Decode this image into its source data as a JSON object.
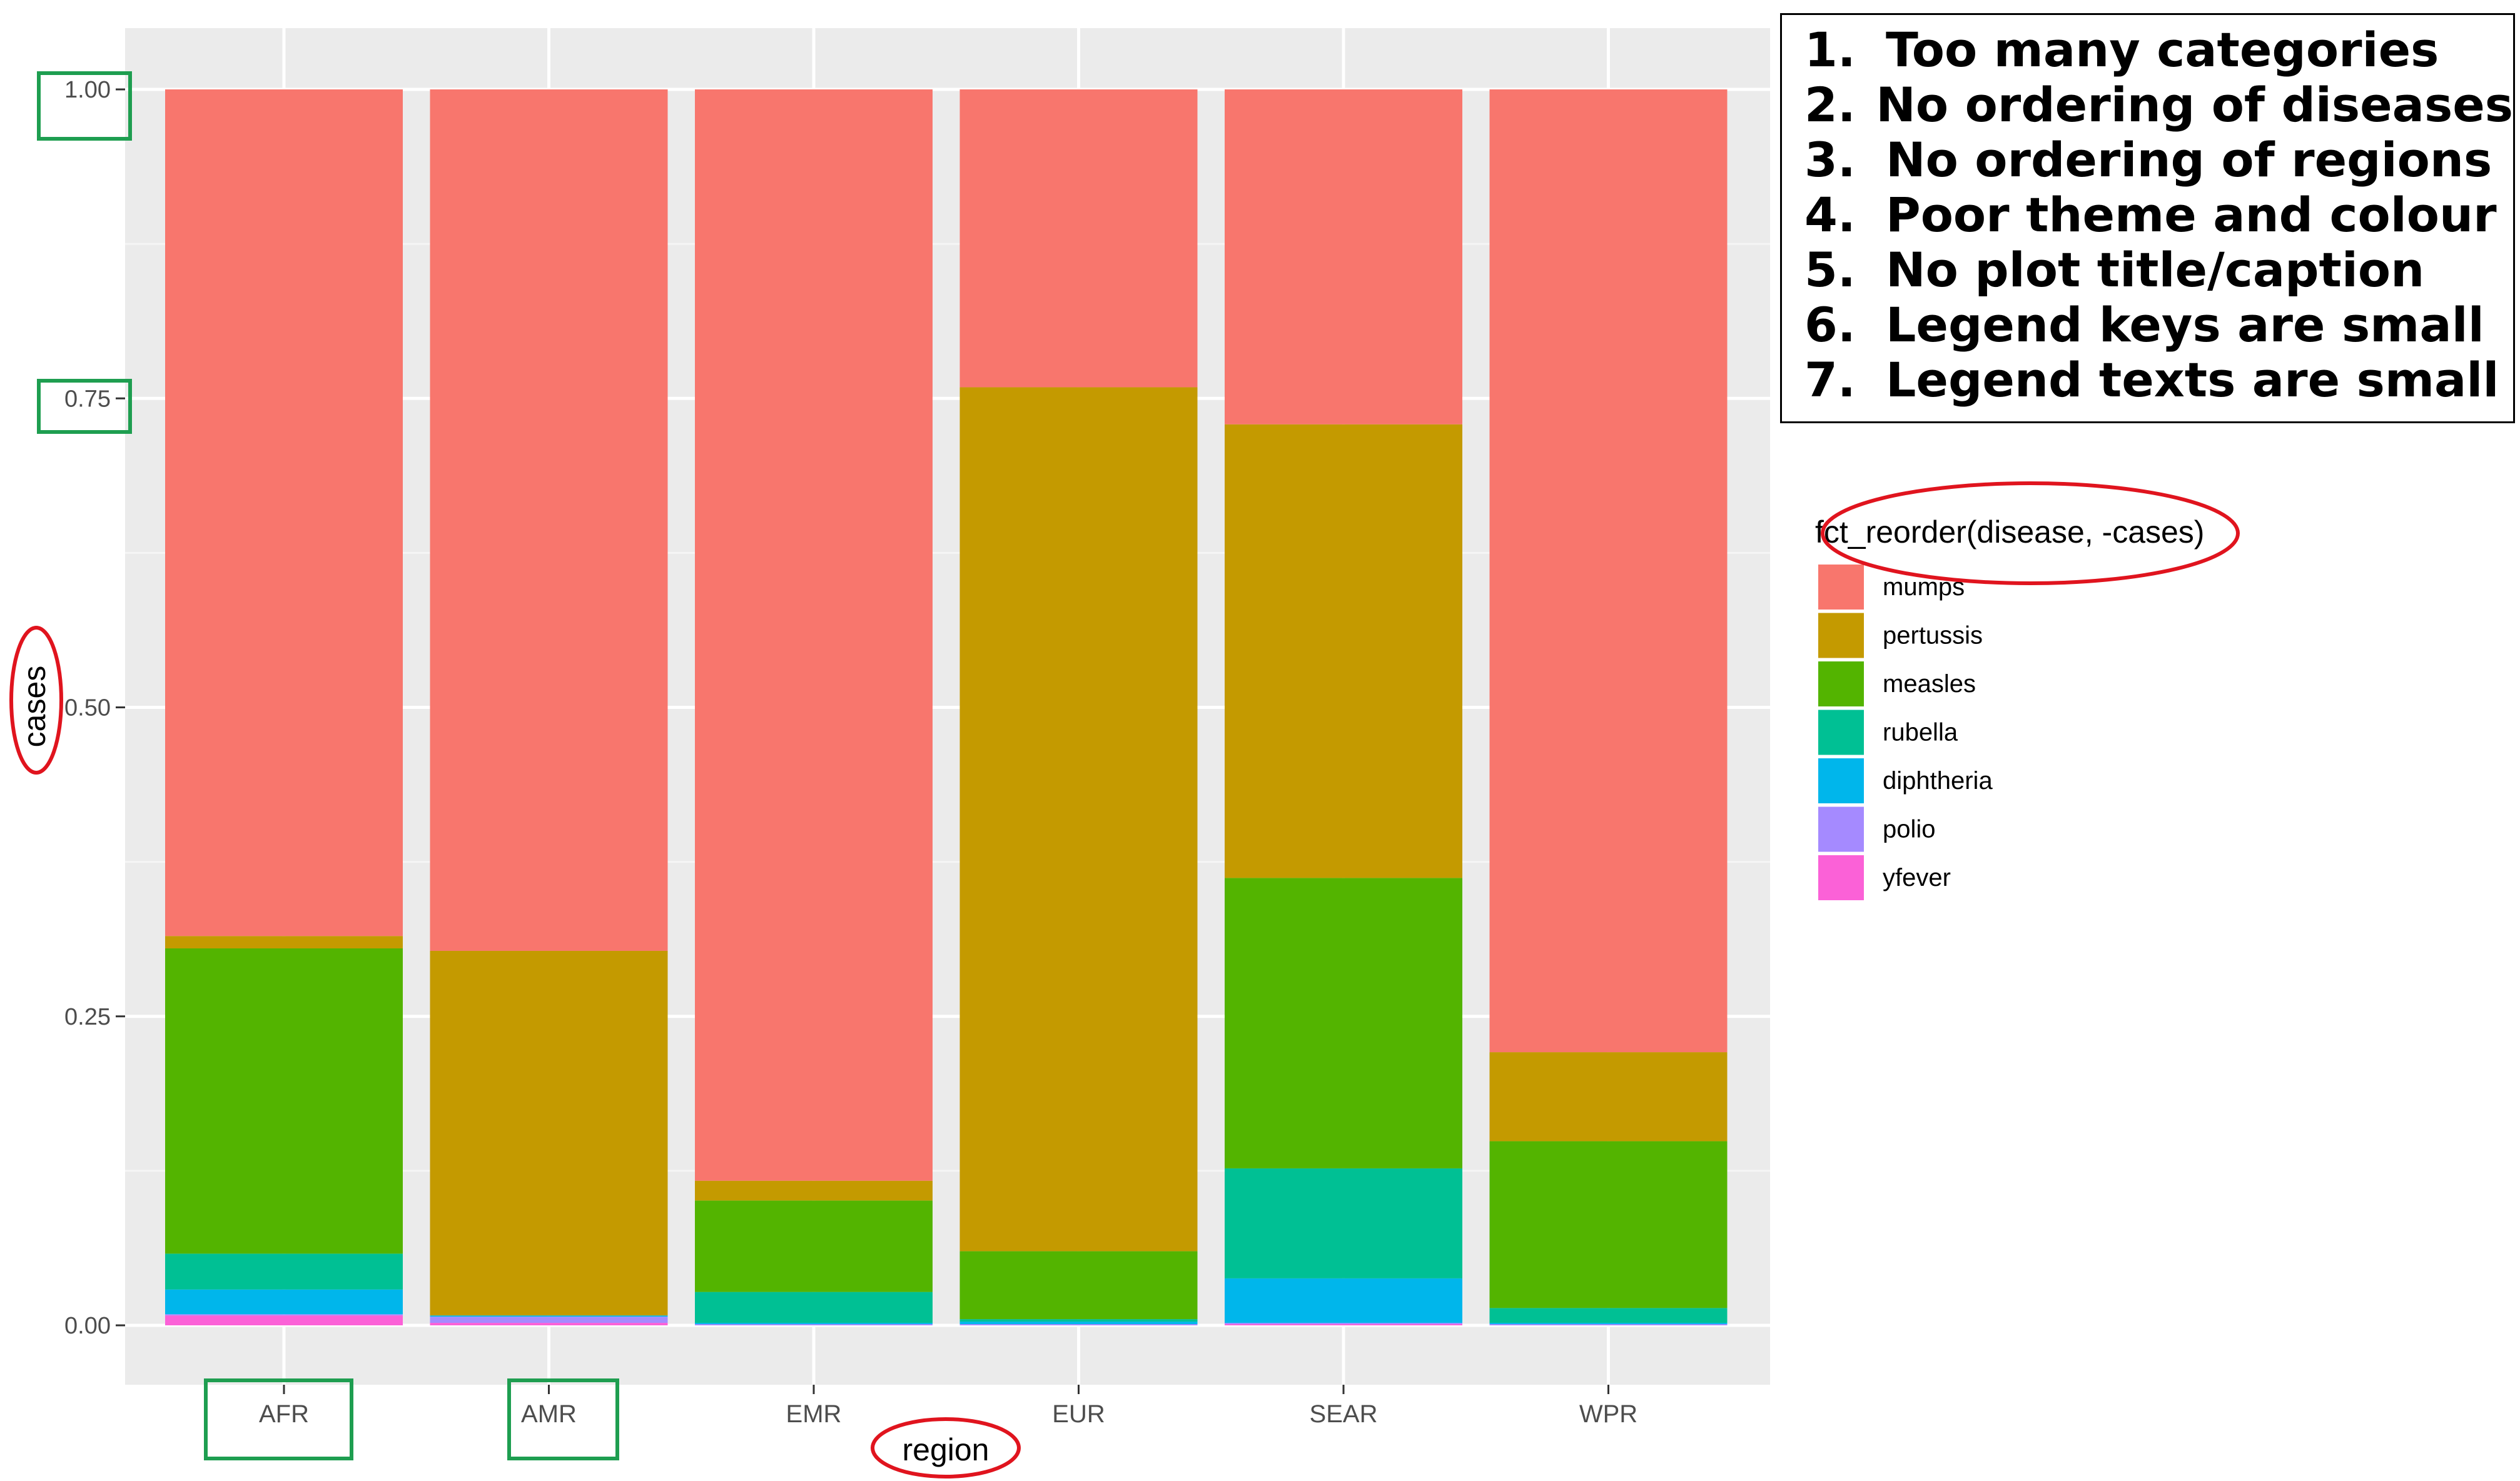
{
  "chart_data": {
    "type": "bar",
    "stacked": true,
    "position": "fill",
    "xlabel": "region",
    "ylabel": "cases",
    "ylim": [
      0,
      1
    ],
    "yticks": [
      "0.00",
      "0.25",
      "0.50",
      "0.75",
      "1.00"
    ],
    "categories": [
      "AFR",
      "AMR",
      "EMR",
      "EUR",
      "SEAR",
      "WPR"
    ],
    "legend_title": "fct_reorder(disease, -cases)",
    "legend_position": "right",
    "grid": true,
    "background": "#EBEBEB",
    "series": [
      {
        "name": "mumps",
        "color": "#F8766D",
        "values": [
          0.685,
          0.697,
          0.883,
          0.241,
          0.271,
          0.779
        ]
      },
      {
        "name": "pertussis",
        "color": "#C49A00",
        "values": [
          0.01,
          0.295,
          0.016,
          0.699,
          0.367,
          0.072
        ]
      },
      {
        "name": "measles",
        "color": "#53B400",
        "values": [
          0.247,
          0.0,
          0.074,
          0.055,
          0.235,
          0.135
        ]
      },
      {
        "name": "rubella",
        "color": "#00C094",
        "values": [
          0.029,
          0.0,
          0.025,
          0.002,
          0.089,
          0.012
        ]
      },
      {
        "name": "diphtheria",
        "color": "#00B6EB",
        "values": [
          0.02,
          0.001,
          0.001,
          0.002,
          0.036,
          0.001
        ]
      },
      {
        "name": "polio",
        "color": "#A58AFF",
        "values": [
          0.001,
          0.005,
          0.001,
          0.001,
          0.001,
          0.001
        ]
      },
      {
        "name": "yfever",
        "color": "#FB61D7",
        "values": [
          0.008,
          0.002,
          0.0,
          0.0,
          0.001,
          0.0
        ]
      }
    ]
  },
  "annotations": {
    "items": [
      {
        "num": "1.",
        "text": "Too many categories"
      },
      {
        "num": "2.",
        "text": "No ordering of diseases"
      },
      {
        "num": "3.",
        "text": "No ordering of regions"
      },
      {
        "num": "4.",
        "text": "Poor theme and colour"
      },
      {
        "num": "5.",
        "text": "No plot title/caption"
      },
      {
        "num": "6.",
        "text": "Legend keys are small"
      },
      {
        "num": "7.",
        "text": "Legend texts are small"
      }
    ],
    "highlight_green": "#1E9E50",
    "highlight_red": "#E0141E"
  }
}
